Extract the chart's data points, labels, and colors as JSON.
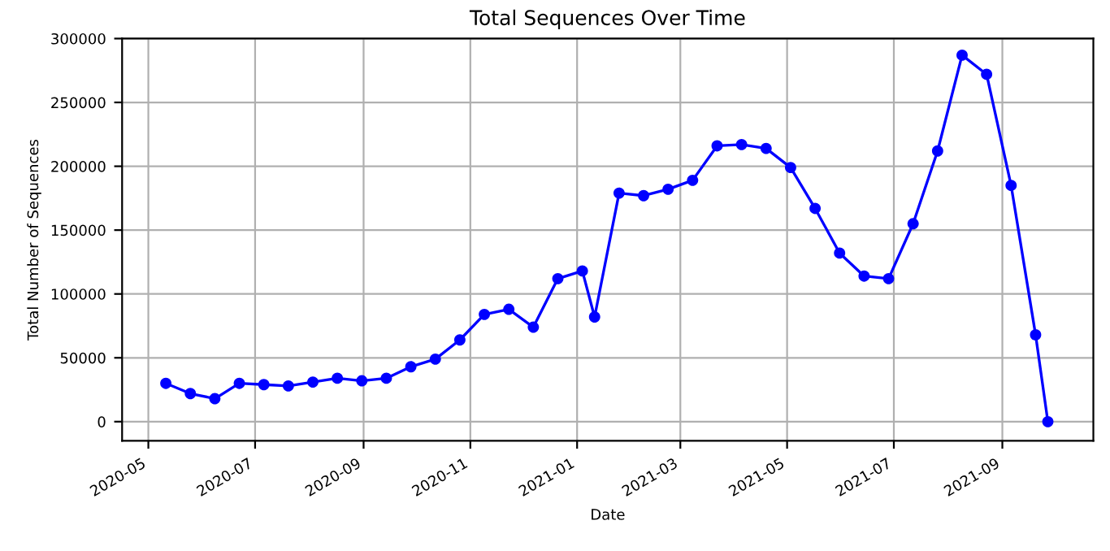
{
  "chart_data": {
    "type": "line",
    "title": "Total Sequences Over Time",
    "xlabel": "Date",
    "ylabel": "Total Number of Sequences",
    "x": [
      "2020-05-11",
      "2020-05-25",
      "2020-06-08",
      "2020-06-22",
      "2020-07-06",
      "2020-07-20",
      "2020-08-03",
      "2020-08-17",
      "2020-08-31",
      "2020-09-14",
      "2020-09-28",
      "2020-10-12",
      "2020-10-26",
      "2020-11-09",
      "2020-11-23",
      "2020-12-07",
      "2020-12-21",
      "2021-01-04",
      "2021-01-11",
      "2021-01-25",
      "2021-02-08",
      "2021-02-22",
      "2021-03-08",
      "2021-03-22",
      "2021-04-05",
      "2021-04-19",
      "2021-05-03",
      "2021-05-17",
      "2021-05-31",
      "2021-06-14",
      "2021-06-28",
      "2021-07-12",
      "2021-07-26",
      "2021-08-09",
      "2021-08-23",
      "2021-09-06",
      "2021-09-20",
      "2021-09-27"
    ],
    "series": [
      {
        "color": "#0000ff",
        "values": [
          30000,
          22000,
          18000,
          30000,
          29000,
          28000,
          31000,
          34000,
          32000,
          34000,
          43000,
          49000,
          64000,
          84000,
          88000,
          74000,
          112000,
          118000,
          82000,
          179000,
          177000,
          182000,
          189000,
          216000,
          217000,
          214000,
          199000,
          167000,
          132000,
          114000,
          112000,
          155000,
          212000,
          287000,
          272000,
          185000,
          68000,
          0
        ]
      }
    ],
    "xlim": [
      "2020-04-16",
      "2021-10-23"
    ],
    "ylim": [
      -15000,
      300000
    ],
    "xticks": [
      {
        "value": "2020-05-01",
        "label": "2020-05"
      },
      {
        "value": "2020-07-01",
        "label": "2020-07"
      },
      {
        "value": "2020-09-01",
        "label": "2020-09"
      },
      {
        "value": "2020-11-01",
        "label": "2020-11"
      },
      {
        "value": "2021-01-01",
        "label": "2021-01"
      },
      {
        "value": "2021-03-01",
        "label": "2021-03"
      },
      {
        "value": "2021-05-01",
        "label": "2021-05"
      },
      {
        "value": "2021-07-01",
        "label": "2021-07"
      },
      {
        "value": "2021-09-01",
        "label": "2021-09"
      }
    ],
    "yticks": [
      0,
      50000,
      100000,
      150000,
      200000,
      250000,
      300000
    ],
    "grid": true,
    "marker": "circle",
    "line_style": "solid"
  }
}
